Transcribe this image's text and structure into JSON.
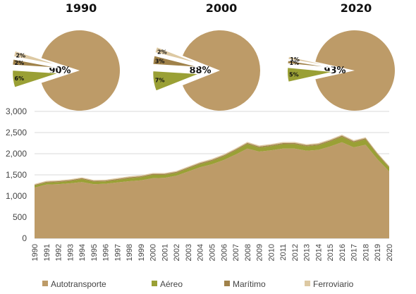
{
  "chart_data": [
    {
      "type": "pie",
      "title": "1990",
      "categories": [
        "Autotransporte",
        "Aéreo",
        "Marítimo",
        "Ferroviario"
      ],
      "values": [
        90,
        6,
        2,
        2
      ],
      "labels": [
        "90%",
        "6%",
        "2%",
        "2%"
      ]
    },
    {
      "type": "pie",
      "title": "2000",
      "categories": [
        "Autotransporte",
        "Aéreo",
        "Marítimo",
        "Ferroviario"
      ],
      "values": [
        88,
        7,
        3,
        2
      ],
      "labels": [
        "88%",
        "7%",
        "3%",
        "2%"
      ]
    },
    {
      "type": "pie",
      "title": "2020",
      "categories": [
        "Autotransporte",
        "Aéreo",
        "Marítimo",
        "Ferroviario"
      ],
      "values": [
        93,
        5,
        1,
        1
      ],
      "labels": [
        "93%",
        "5%",
        "1%",
        "1%"
      ]
    },
    {
      "type": "area",
      "stacked": true,
      "title": "",
      "xlabel": "",
      "ylabel": "",
      "ylim": [
        0,
        3000
      ],
      "yticks": [
        0,
        500,
        1000,
        1500,
        2000,
        2500,
        3000
      ],
      "ytick_labels": [
        "0",
        "500",
        "1,000",
        "1,500",
        "2,000",
        "2,500",
        "3,000"
      ],
      "grid": true,
      "legend_position": "bottom",
      "x": [
        "1990",
        "1991",
        "1992",
        "1993",
        "1994",
        "1995",
        "1996",
        "1997",
        "1998",
        "1999",
        "2000",
        "2001",
        "2002",
        "2003",
        "2004",
        "2005",
        "2006",
        "2007",
        "2008",
        "2009",
        "2010",
        "2011",
        "2012",
        "2013",
        "2014",
        "2015",
        "2016",
        "2017",
        "2018",
        "2019",
        "2020"
      ],
      "series": [
        {
          "name": "Autotransporte",
          "color": "#bd9b68",
          "values": [
            1200,
            1270,
            1280,
            1300,
            1330,
            1280,
            1290,
            1320,
            1350,
            1370,
            1420,
            1430,
            1480,
            1580,
            1680,
            1750,
            1850,
            1980,
            2120,
            2050,
            2080,
            2120,
            2120,
            2070,
            2090,
            2170,
            2270,
            2150,
            2210,
            1870,
            1580
          ]
        },
        {
          "name": "Aéreo",
          "color": "#9aa035",
          "values": [
            45,
            48,
            50,
            55,
            70,
            60,
            55,
            60,
            70,
            75,
            80,
            70,
            68,
            72,
            75,
            80,
            85,
            95,
            110,
            95,
            100,
            105,
            108,
            105,
            110,
            120,
            130,
            120,
            130,
            110,
            90
          ]
        },
        {
          "name": "Marítimo",
          "color": "#a0824a",
          "values": [
            20,
            20,
            20,
            20,
            20,
            20,
            20,
            22,
            22,
            22,
            22,
            22,
            22,
            23,
            24,
            25,
            25,
            25,
            25,
            24,
            25,
            25,
            25,
            25,
            25,
            25,
            25,
            24,
            24,
            22,
            20
          ]
        },
        {
          "name": "Ferroviario",
          "color": "#ddc9a3",
          "values": [
            20,
            20,
            20,
            20,
            20,
            20,
            20,
            22,
            22,
            22,
            22,
            22,
            22,
            23,
            24,
            25,
            25,
            25,
            25,
            24,
            25,
            25,
            25,
            25,
            25,
            25,
            25,
            24,
            24,
            22,
            20
          ]
        }
      ]
    }
  ]
}
